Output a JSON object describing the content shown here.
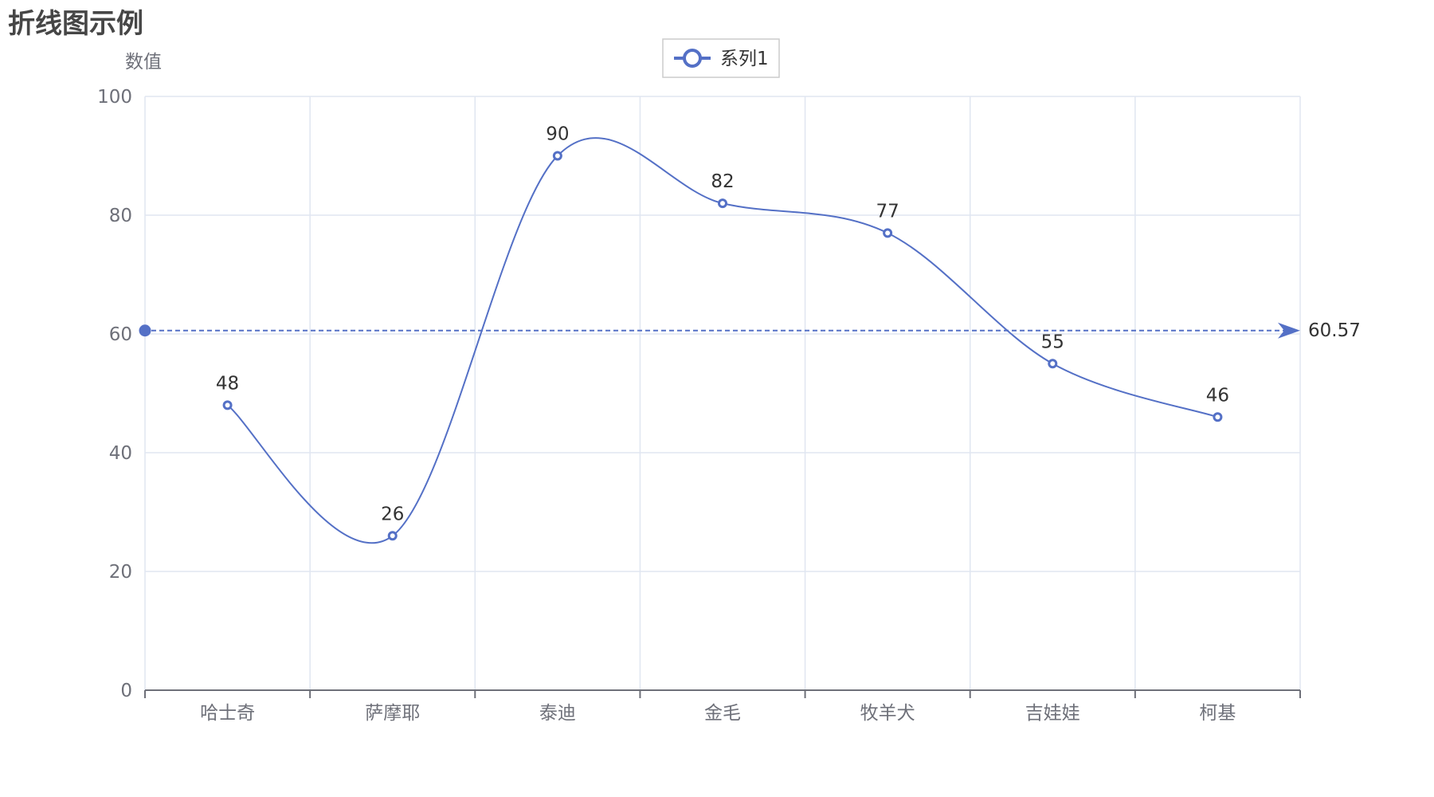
{
  "chart_data": {
    "type": "line",
    "title": "折线图示例",
    "ylabel": "数值",
    "xlabel": "",
    "categories": [
      "哈士奇",
      "萨摩耶",
      "泰迪",
      "金毛",
      "牧羊犬",
      "吉娃娃",
      "柯基"
    ],
    "series": [
      {
        "name": "系列1",
        "values": [
          48,
          26,
          90,
          82,
          77,
          55,
          46
        ],
        "color": "#5470c6",
        "smooth": true
      }
    ],
    "ylim": [
      0,
      100
    ],
    "yticks": [
      "0",
      "20",
      "40",
      "60",
      "80",
      "100"
    ],
    "grid": true,
    "legend": "top-center",
    "mark_line": {
      "type": "average",
      "value": 60.57,
      "label": "60.57"
    }
  }
}
